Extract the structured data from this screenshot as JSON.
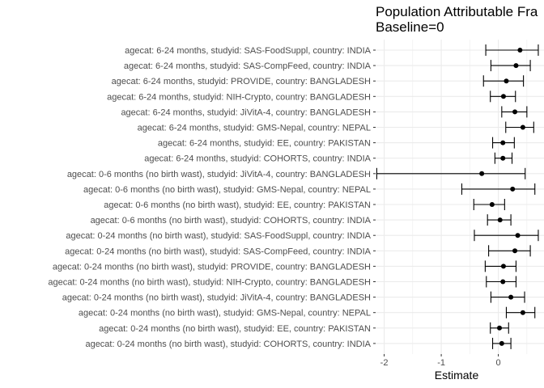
{
  "chart_data": {
    "type": "forest",
    "title_lines": [
      "Population Attributable Fra",
      "Baseline=0"
    ],
    "xlabel": "Estimate",
    "ylabel": "",
    "xlim": [
      -2.15,
      0.8
    ],
    "x_ticks": [
      -2,
      -1,
      0
    ],
    "x_tick_labels": [
      "-2",
      "-1",
      "0"
    ],
    "grid": true,
    "background": "#ffffff",
    "grid_color": "#ebebeb",
    "point_color": "#000000",
    "categories": [
      "agecat: 6-24 months, studyid: SAS-FoodSuppl, country: INDIA",
      "agecat: 6-24 months, studyid: SAS-CompFeed, country: INDIA",
      "agecat: 6-24 months, studyid: PROVIDE, country: BANGLADESH",
      "agecat: 6-24 months, studyid: NIH-Crypto, country: BANGLADESH",
      "agecat: 6-24 months, studyid: JiVitA-4, country: BANGLADESH",
      "agecat: 6-24 months, studyid: GMS-Nepal, country: NEPAL",
      "agecat: 6-24 months, studyid: EE, country: PAKISTAN",
      "agecat: 6-24 months, studyid: COHORTS, country: INDIA",
      "agecat: 0-6 months (no birth wast), studyid: JiVitA-4, country: BANGLADESH",
      "agecat: 0-6 months (no birth wast), studyid: GMS-Nepal, country: NEPAL",
      "agecat: 0-6 months (no birth wast), studyid: EE, country: PAKISTAN",
      "agecat: 0-6 months (no birth wast), studyid: COHORTS, country: INDIA",
      "agecat: 0-24 months (no birth wast), studyid: SAS-FoodSuppl, country: INDIA",
      "agecat: 0-24 months (no birth wast), studyid: SAS-CompFeed, country: INDIA",
      "agecat: 0-24 months (no birth wast), studyid: PROVIDE, country: BANGLADESH",
      "agecat: 0-24 months (no birth wast), studyid: NIH-Crypto, country: BANGLADESH",
      "agecat: 0-24 months (no birth wast), studyid: JiVitA-4, country: BANGLADESH",
      "agecat: 0-24 months (no birth wast), studyid: GMS-Nepal, country: NEPAL",
      "agecat: 0-24 months (no birth wast), studyid: EE, country: PAKISTAN",
      "agecat: 0-24 months (no birth wast), studyid: COHORTS, country: INDIA"
    ],
    "estimates": [
      0.38,
      0.31,
      0.14,
      0.09,
      0.29,
      0.43,
      0.08,
      0.08,
      -0.29,
      0.25,
      -0.11,
      0.03,
      0.34,
      0.29,
      0.09,
      0.08,
      0.22,
      0.43,
      0.02,
      0.06
    ],
    "lower": [
      -0.22,
      -0.13,
      -0.26,
      -0.14,
      0.06,
      0.13,
      -0.1,
      -0.06,
      -2.13,
      -0.64,
      -0.43,
      -0.19,
      -0.42,
      -0.17,
      -0.23,
      -0.21,
      -0.13,
      0.14,
      -0.14,
      -0.1
    ],
    "upper": [
      0.7,
      0.56,
      0.44,
      0.3,
      0.5,
      0.62,
      0.28,
      0.24,
      0.47,
      0.64,
      0.11,
      0.22,
      0.7,
      0.56,
      0.31,
      0.31,
      0.46,
      0.64,
      0.18,
      0.22
    ]
  }
}
